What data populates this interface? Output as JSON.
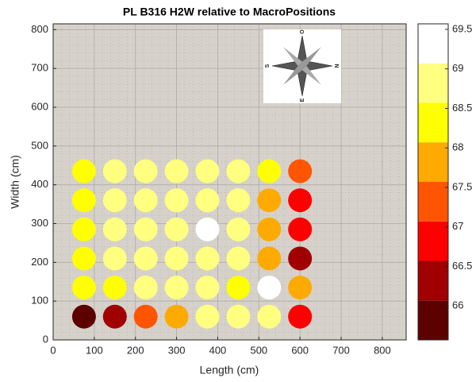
{
  "chart_data": {
    "type": "scatter",
    "title": "PL B316 H2W relative to MacroPositions",
    "x_label": "Length (cm)",
    "y_label": "Width (cm)",
    "xlim": [
      0,
      858
    ],
    "ylim": [
      0,
      815
    ],
    "xticks": [
      0,
      100,
      200,
      300,
      400,
      500,
      600,
      700,
      800
    ],
    "yticks": [
      0,
      100,
      200,
      300,
      400,
      500,
      600,
      700,
      800
    ],
    "grid": true,
    "minor_grid": true,
    "x": [
      75,
      150,
      225,
      300,
      375,
      450,
      525,
      600,
      75,
      150,
      225,
      300,
      375,
      450,
      525,
      600,
      75,
      150,
      225,
      300,
      375,
      450,
      525,
      600,
      75,
      150,
      225,
      300,
      375,
      450,
      525,
      600,
      75,
      150,
      225,
      300,
      375,
      450,
      525,
      600,
      75,
      150,
      225,
      300,
      375,
      450,
      525,
      600
    ],
    "y": [
      60,
      60,
      60,
      60,
      60,
      60,
      60,
      60,
      135,
      135,
      135,
      135,
      135,
      135,
      135,
      135,
      210,
      210,
      210,
      210,
      210,
      210,
      210,
      210,
      285,
      285,
      285,
      285,
      285,
      285,
      285,
      285,
      360,
      360,
      360,
      360,
      360,
      360,
      360,
      360,
      435,
      435,
      435,
      435,
      435,
      435,
      435,
      435
    ],
    "values": [
      65.8,
      66.3,
      67.3,
      67.8,
      68.8,
      68.8,
      68.8,
      66.8,
      68.3,
      68.3,
      68.8,
      68.8,
      68.8,
      68.3,
      69.3,
      67.8,
      68.3,
      68.8,
      68.8,
      68.8,
      68.8,
      68.8,
      67.8,
      66.3,
      68.3,
      68.8,
      68.8,
      68.8,
      69.3,
      68.8,
      67.8,
      66.8,
      68.3,
      68.8,
      68.8,
      68.8,
      68.8,
      68.8,
      67.8,
      66.8,
      68.3,
      68.8,
      68.8,
      68.8,
      68.8,
      68.8,
      68.3,
      67.3
    ],
    "colorbar": {
      "lim": [
        65.57,
        69.57
      ],
      "ticks": [
        66,
        66.5,
        67,
        67.5,
        68,
        68.5,
        69,
        69.5
      ],
      "colors": [
        "#5c0000",
        "#a00000",
        "#ff0000",
        "#ff5500",
        "#ffaa00",
        "#ffff00",
        "#ffff80",
        "#ffffff"
      ]
    },
    "compass": {
      "labels": [
        "O",
        "N",
        "E",
        "S"
      ]
    }
  }
}
